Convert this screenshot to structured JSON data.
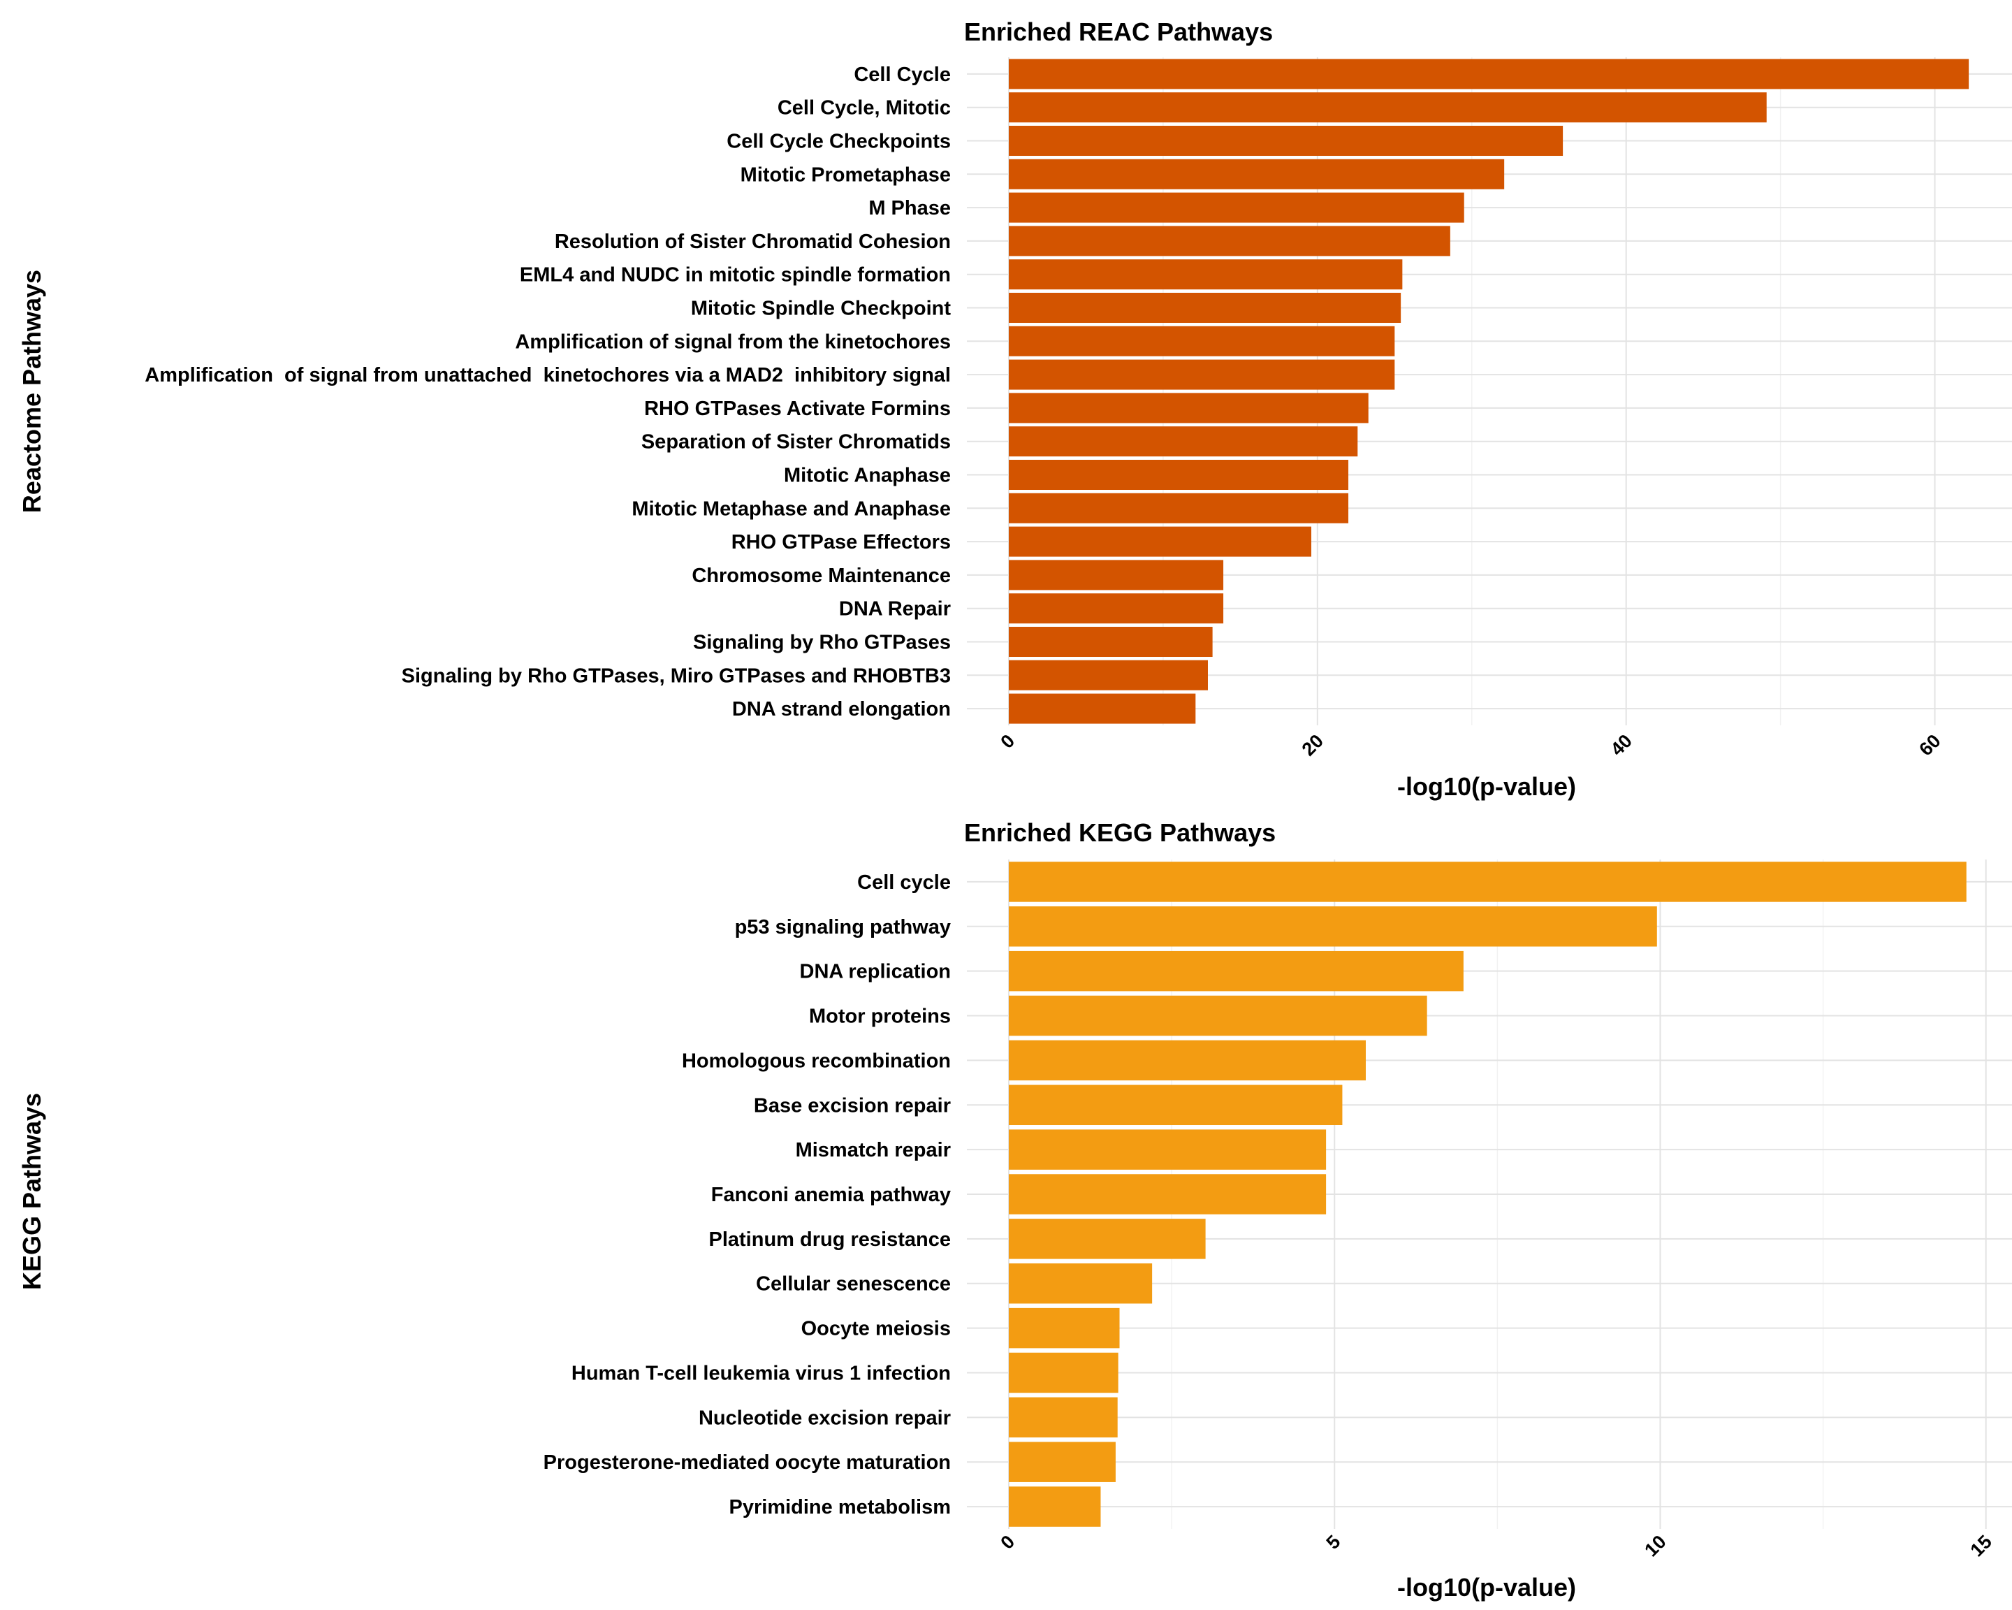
{
  "colors": {
    "reac_bar": "#D35400",
    "kegg_bar": "#F39C12"
  },
  "chart_data": [
    {
      "type": "bar",
      "orientation": "horizontal",
      "title": "Enriched REAC Pathways",
      "xlabel": "-log10(p-value)",
      "ylabel": "Reactome Pathways",
      "xlim": [
        0,
        65
      ],
      "xticks": [
        0,
        20,
        40,
        60
      ],
      "grid": true,
      "categories": [
        "Cell Cycle",
        "Cell Cycle, Mitotic",
        "Cell Cycle Checkpoints",
        "Mitotic Prometaphase",
        "M Phase",
        "Resolution of Sister Chromatid Cohesion",
        "EML4 and NUDC in mitotic spindle formation",
        "Mitotic Spindle Checkpoint",
        "Amplification of signal from the kinetochores",
        "Amplification  of signal from unattached  kinetochores via a MAD2  inhibitory signal",
        "RHO GTPases Activate Formins",
        "Separation of Sister Chromatids",
        "Mitotic Anaphase",
        "Mitotic Metaphase and Anaphase",
        "RHO GTPase Effectors",
        "Chromosome Maintenance",
        "DNA Repair",
        "Signaling by Rho GTPases",
        "Signaling by Rho GTPases, Miro GTPases and RHOBTB3",
        "DNA strand elongation"
      ],
      "values": [
        62.2,
        49.1,
        35.9,
        32.1,
        29.5,
        28.6,
        25.5,
        25.4,
        25.0,
        25.0,
        23.3,
        22.6,
        22.0,
        22.0,
        19.6,
        13.9,
        13.9,
        13.2,
        12.9,
        12.1
      ]
    },
    {
      "type": "bar",
      "orientation": "horizontal",
      "title": "Enriched KEGG Pathways",
      "xlabel": "-log10(p-value)",
      "ylabel": "KEGG Pathways",
      "xlim": [
        0,
        15.4
      ],
      "xticks": [
        0,
        5,
        10,
        15
      ],
      "grid": true,
      "categories": [
        "Cell cycle",
        "p53 signaling pathway",
        "DNA replication",
        "Motor proteins",
        "Homologous recombination",
        "Base excision repair",
        "Mismatch repair",
        "Fanconi anemia pathway",
        "Platinum drug resistance",
        "Cellular senescence",
        "Oocyte meiosis",
        "Human T-cell leukemia virus 1 infection",
        "Nucleotide excision repair",
        "Progesterone-mediated oocyte maturation",
        "Pyrimidine metabolism"
      ],
      "values": [
        14.7,
        9.95,
        6.98,
        6.42,
        5.48,
        5.12,
        4.87,
        4.87,
        3.02,
        2.2,
        1.7,
        1.68,
        1.67,
        1.64,
        1.41
      ]
    }
  ]
}
